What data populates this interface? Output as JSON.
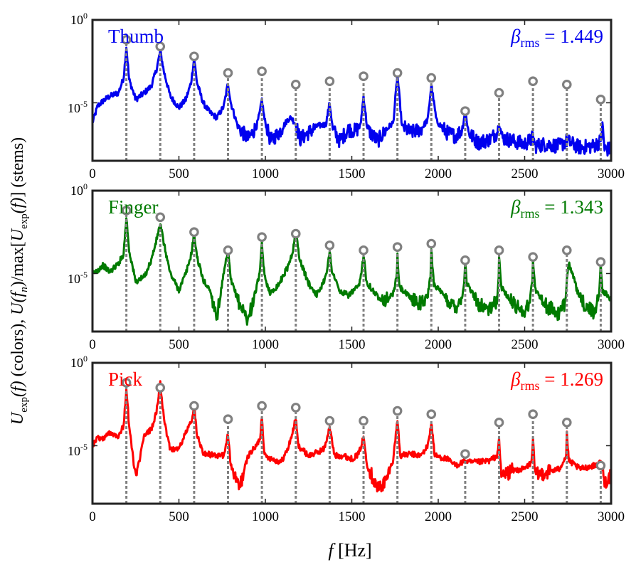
{
  "figure": {
    "ylabel_parts": {
      "colors_symbol": "U",
      "colors_sub": "exp",
      "colors_arg": "(f)",
      "colors_text": "(colors),",
      "stems_symbol": "U",
      "stems_arg_open": "(f",
      "stems_arg_sub": "n",
      "stems_mid": ")/max[",
      "stems_inner_symbol": "U",
      "stems_inner_sub": "exp",
      "stems_inner_arg": "(f)",
      "stems_close": "]",
      "stems_text": "(stems)"
    },
    "xlabel_symbol": "f",
    "xlabel_unit": "[Hz]",
    "ytick_top": "10",
    "ytick_top_exp": "0",
    "ytick_mid": "10",
    "ytick_mid_exp": "-5",
    "xticks": [
      "0",
      "500",
      "1000",
      "1500",
      "2000",
      "2500",
      "3000"
    ]
  },
  "chart_data": [
    {
      "type": "line",
      "title": "Thumb",
      "color": "#0000ee",
      "beta_symbol": "β",
      "beta_sub": "rms",
      "beta_value": "= 1.449",
      "xlim": [
        0,
        3000
      ],
      "ylim_log10": [
        -8.5,
        0
      ],
      "yscale": "log",
      "stem_color": "#808080",
      "spectrum_x": [
        0,
        30,
        60,
        100,
        150,
        180,
        196,
        212,
        250,
        300,
        340,
        370,
        392,
        415,
        450,
        500,
        540,
        570,
        588,
        605,
        640,
        680,
        720,
        760,
        784,
        800,
        840,
        900,
        950,
        970,
        980,
        995,
        1030,
        1080,
        1130,
        1150,
        1176,
        1200,
        1250,
        1300,
        1350,
        1372,
        1390,
        1430,
        1480,
        1520,
        1550,
        1568,
        1590,
        1650,
        1700,
        1740,
        1764,
        1790,
        1840,
        1900,
        1940,
        1960,
        1990,
        2050,
        2100,
        2140,
        2156,
        2175,
        2230,
        2300,
        2340,
        2352,
        2370,
        2430,
        2500,
        2540,
        2548,
        2560,
        2620,
        2700,
        2744,
        2760,
        2820,
        2900,
        2940,
        2950,
        2962,
        3000
      ],
      "spectrum_y_log10": [
        -6.2,
        -5.2,
        -4.9,
        -4.6,
        -4.4,
        -3.5,
        -1.6,
        -3.6,
        -4.8,
        -4.4,
        -4.0,
        -3.0,
        -1.9,
        -3.2,
        -4.6,
        -5.3,
        -4.8,
        -3.8,
        -2.3,
        -3.8,
        -5.0,
        -5.6,
        -5.9,
        -5.2,
        -3.8,
        -5.0,
        -6.4,
        -7.2,
        -6.4,
        -5.5,
        -4.8,
        -6.0,
        -7.3,
        -6.8,
        -6.0,
        -5.9,
        -6.3,
        -7.2,
        -6.8,
        -6.4,
        -6.3,
        -5.0,
        -6.6,
        -7.3,
        -6.6,
        -6.7,
        -6.4,
        -4.6,
        -6.6,
        -7.3,
        -6.6,
        -6.2,
        -3.3,
        -6.4,
        -6.8,
        -6.6,
        -6.0,
        -3.9,
        -6.1,
        -6.8,
        -7.0,
        -6.6,
        -5.4,
        -6.8,
        -7.4,
        -7.2,
        -6.8,
        -6.2,
        -7.1,
        -7.3,
        -7.5,
        -7.2,
        -7.0,
        -7.6,
        -7.5,
        -7.6,
        -7.3,
        -7.4,
        -7.7,
        -7.6,
        -7.3,
        -6.3,
        -7.8,
        -7.8
      ],
      "stems": {
        "x": [
          196,
          392,
          588,
          784,
          980,
          1176,
          1372,
          1568,
          1764,
          1960,
          2156,
          2352,
          2548,
          2744,
          2940
        ],
        "y_log10": [
          -1.2,
          -1.6,
          -2.2,
          -3.2,
          -3.1,
          -3.9,
          -3.7,
          -3.4,
          -3.2,
          -3.5,
          -5.5,
          -4.4,
          -3.7,
          -3.9,
          -4.8
        ]
      }
    },
    {
      "type": "line",
      "title": "Finger",
      "color": "#007a00",
      "beta_symbol": "β",
      "beta_sub": "rms",
      "beta_value": "= 1.343",
      "xlim": [
        0,
        3000
      ],
      "ylim_log10": [
        -8.5,
        0
      ],
      "yscale": "log",
      "stem_color": "#808080",
      "spectrum_x": [
        0,
        30,
        60,
        100,
        150,
        180,
        196,
        212,
        250,
        300,
        340,
        370,
        392,
        415,
        450,
        500,
        540,
        570,
        588,
        605,
        640,
        680,
        720,
        760,
        784,
        800,
        850,
        900,
        950,
        970,
        980,
        995,
        1030,
        1080,
        1130,
        1160,
        1176,
        1200,
        1250,
        1300,
        1340,
        1360,
        1372,
        1385,
        1430,
        1480,
        1540,
        1556,
        1568,
        1585,
        1650,
        1700,
        1740,
        1760,
        1764,
        1775,
        1840,
        1900,
        1940,
        1955,
        1960,
        1975,
        2050,
        2100,
        2140,
        2150,
        2156,
        2165,
        2230,
        2300,
        2340,
        2350,
        2352,
        2365,
        2430,
        2500,
        2530,
        2545,
        2548,
        2560,
        2620,
        2700,
        2735,
        2744,
        2755,
        2820,
        2900,
        2930,
        2940,
        2950,
        3000
      ],
      "spectrum_y_log10": [
        -5.0,
        -4.8,
        -4.5,
        -4.9,
        -4.4,
        -3.8,
        -1.6,
        -3.6,
        -5.5,
        -5.2,
        -4.2,
        -3.0,
        -2.0,
        -3.3,
        -5.0,
        -6.0,
        -5.0,
        -3.9,
        -2.6,
        -4.0,
        -5.4,
        -6.0,
        -7.6,
        -5.0,
        -3.6,
        -5.4,
        -6.8,
        -7.8,
        -5.8,
        -4.8,
        -3.2,
        -5.2,
        -6.2,
        -5.6,
        -4.6,
        -3.6,
        -2.5,
        -4.2,
        -5.6,
        -6.3,
        -5.4,
        -4.6,
        -3.7,
        -4.8,
        -6.1,
        -6.3,
        -5.8,
        -5.0,
        -3.8,
        -5.5,
        -6.4,
        -6.6,
        -6.2,
        -5.2,
        -3.9,
        -5.8,
        -6.5,
        -6.8,
        -6.3,
        -5.2,
        -3.6,
        -5.6,
        -6.6,
        -7.0,
        -6.4,
        -5.4,
        -4.3,
        -5.6,
        -6.8,
        -7.2,
        -6.6,
        -5.2,
        -4.0,
        -5.8,
        -6.8,
        -7.3,
        -6.7,
        -5.3,
        -4.2,
        -5.9,
        -6.9,
        -7.5,
        -6.8,
        -5.2,
        -4.3,
        -6.6,
        -7.4,
        -6.3,
        -4.4,
        -6.0,
        -6.6
      ],
      "stems": {
        "x": [
          196,
          392,
          588,
          784,
          980,
          1176,
          1372,
          1568,
          1764,
          1960,
          2156,
          2352,
          2548,
          2744,
          2940
        ],
        "y_log10": [
          -1.2,
          -1.6,
          -2.5,
          -3.6,
          -2.8,
          -2.6,
          -3.3,
          -3.6,
          -3.4,
          -3.2,
          -4.2,
          -3.6,
          -4.0,
          -3.6,
          -4.3
        ]
      }
    },
    {
      "type": "line",
      "title": "Pick",
      "color": "#ff0000",
      "beta_symbol": "β",
      "beta_sub": "rms",
      "beta_value": "= 1.269",
      "xlim": [
        0,
        3000
      ],
      "ylim_log10": [
        -8.5,
        0
      ],
      "yscale": "log",
      "stem_color": "#808080",
      "spectrum_x": [
        0,
        30,
        60,
        100,
        150,
        180,
        196,
        212,
        250,
        300,
        340,
        370,
        392,
        415,
        450,
        500,
        540,
        570,
        588,
        605,
        640,
        700,
        760,
        784,
        800,
        850,
        900,
        950,
        970,
        980,
        995,
        1040,
        1090,
        1130,
        1160,
        1176,
        1190,
        1250,
        1300,
        1340,
        1372,
        1400,
        1450,
        1500,
        1540,
        1568,
        1590,
        1650,
        1700,
        1740,
        1764,
        1780,
        1840,
        1900,
        1940,
        1960,
        1980,
        2050,
        2100,
        2140,
        2156,
        2175,
        2230,
        2300,
        2340,
        2352,
        2365,
        2430,
        2500,
        2540,
        2548,
        2560,
        2620,
        2700,
        2740,
        2744,
        2755,
        2820,
        2900,
        2940,
        2950,
        2962,
        3000
      ],
      "spectrum_y_log10": [
        -5.0,
        -4.5,
        -4.6,
        -4.2,
        -4.4,
        -3.8,
        -1.5,
        -3.8,
        -7.0,
        -4.4,
        -4.0,
        -3.0,
        -1.2,
        -3.6,
        -5.2,
        -5.2,
        -4.2,
        -3.6,
        -2.6,
        -4.3,
        -5.4,
        -5.6,
        -5.6,
        -4.3,
        -6.2,
        -7.6,
        -5.6,
        -5.0,
        -4.5,
        -3.2,
        -5.6,
        -5.8,
        -6.0,
        -5.2,
        -4.1,
        -3.3,
        -5.0,
        -5.6,
        -5.4,
        -5.2,
        -3.9,
        -5.6,
        -5.6,
        -5.8,
        -5.5,
        -4.5,
        -6.2,
        -7.6,
        -7.1,
        -5.8,
        -3.4,
        -5.6,
        -5.5,
        -5.6,
        -5.0,
        -3.6,
        -5.6,
        -5.8,
        -6.2,
        -6.0,
        -5.9,
        -6.0,
        -6.0,
        -5.9,
        -5.6,
        -4.7,
        -6.8,
        -6.5,
        -6.4,
        -6.0,
        -4.5,
        -6.8,
        -6.6,
        -6.4,
        -5.6,
        -4.2,
        -5.9,
        -6.4,
        -6.2,
        -6.0,
        -6.5,
        -7.2,
        -6.8
      ],
      "stems": {
        "x": [
          196,
          392,
          588,
          784,
          980,
          1176,
          1372,
          1568,
          1764,
          1960,
          2156,
          2352,
          2548,
          2744,
          2940
        ],
        "y_log10": [
          -1.2,
          -1.5,
          -2.6,
          -3.4,
          -2.6,
          -2.7,
          -3.5,
          -3.5,
          -2.9,
          -3.1,
          -5.5,
          -3.6,
          -3.1,
          -3.6,
          -6.2
        ]
      }
    }
  ]
}
